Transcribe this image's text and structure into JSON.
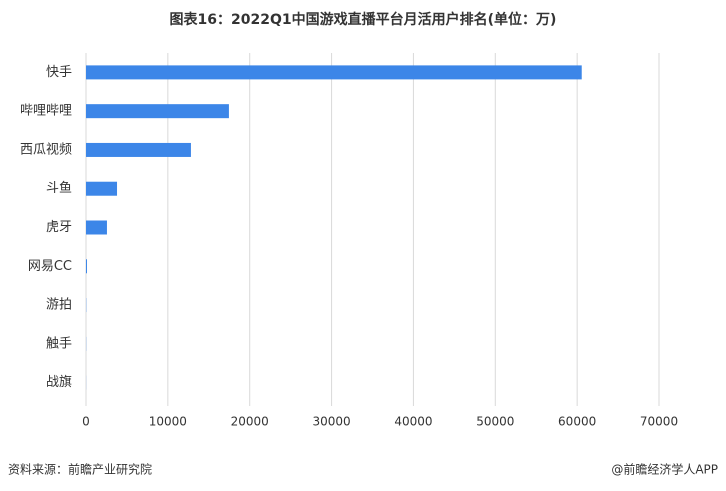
{
  "chart_data": {
    "type": "hbar",
    "title": "图表16：2022Q1中国游戏直播平台月活用户排名(单位：万)",
    "categories": [
      "快手",
      "哔哩哔哩",
      "西瓜视频",
      "斗鱼",
      "虎牙",
      "网易CC",
      "游拍",
      "触手",
      "战旗"
    ],
    "values": [
      60560,
      17460,
      12820,
      3790,
      2560,
      120,
      30,
      20,
      10
    ],
    "color": "#3c86e8",
    "xlim": [
      0,
      70000
    ],
    "xticks": [
      0,
      10000,
      20000,
      30000,
      40000,
      50000,
      60000,
      70000
    ],
    "grid": true,
    "source": "资料来源：前瞻产业研究院",
    "credit": "@前瞻经济学人APP"
  }
}
